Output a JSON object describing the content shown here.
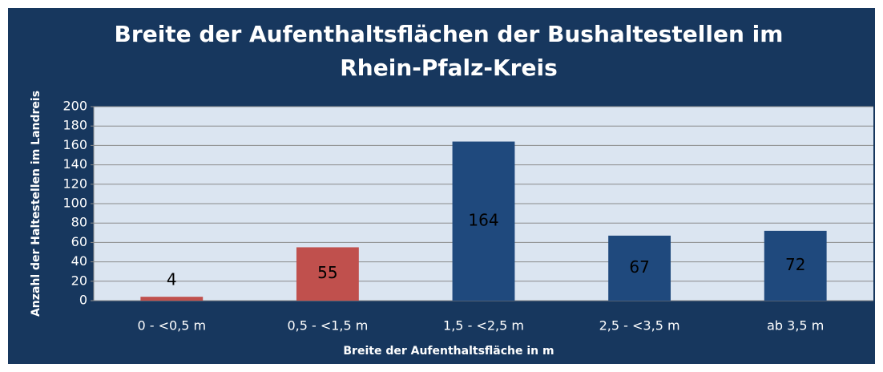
{
  "chart_data": {
    "type": "bar",
    "title": "Breite der Aufenthaltsflächen der Bushaltestellen im Rhein-Pfalz-Kreis",
    "xlabel": "Breite der Aufenthaltsfläche in m",
    "ylabel": "Anzahl der Haltestellen im Landreis",
    "categories": [
      "0 - <0,5 m",
      "0,5 - <1,5 m",
      "1,5 - <2,5 m",
      "2,5 - <3,5 m",
      "ab 3,5 m"
    ],
    "values": [
      4,
      55,
      164,
      67,
      72
    ],
    "colors": [
      "#c0504d",
      "#c0504d",
      "#1f497d",
      "#1f497d",
      "#1f497d"
    ],
    "ylim": [
      0,
      200
    ],
    "yticks": [
      0,
      20,
      40,
      60,
      80,
      100,
      120,
      140,
      160,
      180,
      200
    ],
    "grid": true
  }
}
